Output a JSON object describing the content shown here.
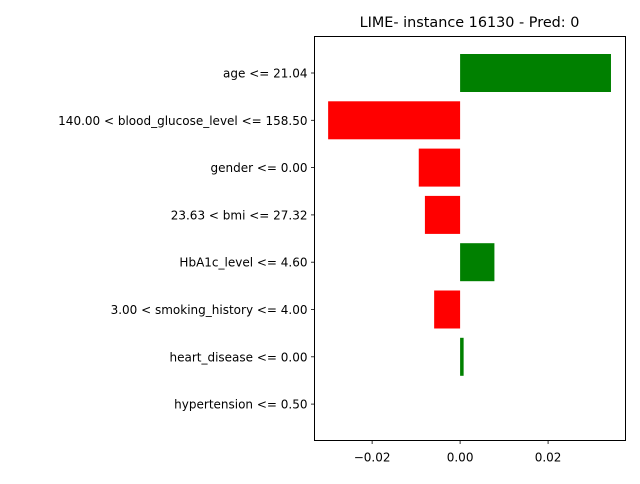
{
  "chart_data": {
    "type": "bar",
    "orientation": "horizontal",
    "title": "LIME- instance 16130 - Pred: 0",
    "xlabel": "",
    "ylabel": "",
    "categories": [
      "age <= 21.04",
      "140.00 < blood_glucose_level <= 158.50",
      "gender <= 0.00",
      "23.63 < bmi <= 27.32",
      "HbA1c_level <= 4.60",
      "3.00 < smoking_history <= 4.00",
      "heart_disease <= 0.00",
      "hypertension <= 0.50"
    ],
    "values": [
      0.0343,
      -0.03,
      -0.0094,
      -0.008,
      0.0078,
      -0.0059,
      0.0008,
      0.0
    ],
    "xlim": [
      -0.0331,
      0.0376
    ],
    "xticks": [
      -0.02,
      0.0,
      0.02
    ],
    "xtick_labels": [
      "−0.02",
      "0.00",
      "0.02"
    ],
    "positive_color": "#008000",
    "negative_color": "#ff0000",
    "grid": false,
    "legend": "none"
  }
}
